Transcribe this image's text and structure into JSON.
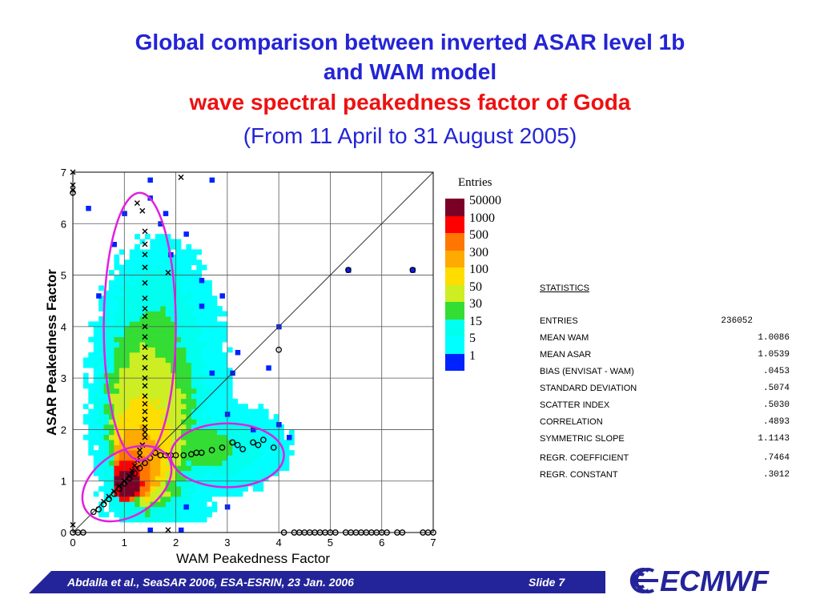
{
  "slide": {
    "title_line1": "Global comparison between inverted ASAR level 1b",
    "title_line2": "and WAM model",
    "title_line3": "wave spectral peakedness factor of Goda",
    "title_line4": "(From 11 April to 31 August 2005)",
    "footer_left": "Abdalla et al.,  SeaSAR 2006,  ESA-ESRIN,  23 Jan. 2006",
    "footer_right": "Slide 7",
    "logo_text": "ECMWF"
  },
  "legend": {
    "title": "Entries",
    "items": [
      {
        "label": "50000",
        "color": "#7a0026"
      },
      {
        "label": "1000",
        "color": "#ff0000"
      },
      {
        "label": "500",
        "color": "#ff7700"
      },
      {
        "label": "300",
        "color": "#ffaa00"
      },
      {
        "label": "100",
        "color": "#ffdd00"
      },
      {
        "label": "50",
        "color": "#ccee22"
      },
      {
        "label": "30",
        "color": "#33dd33"
      },
      {
        "label": "15",
        "color": "#00ffee"
      },
      {
        "label": "5",
        "color": "#00ffff"
      },
      {
        "label": "1",
        "color": "#0022ff"
      }
    ]
  },
  "statistics": {
    "heading": "STATISTICS",
    "rows": [
      {
        "label": "ENTRIES",
        "value": "236052"
      },
      {
        "label": "MEAN WAM",
        "value": "1.0086"
      },
      {
        "label": "MEAN ASAR",
        "value": "1.0539"
      },
      {
        "label": "BIAS (ENVISAT - WAM)",
        "value": ".0453"
      },
      {
        "label": "STANDARD DEVIATION",
        "value": ".5074"
      },
      {
        "label": "SCATTER INDEX",
        "value": ".5030"
      },
      {
        "label": "CORRELATION",
        "value": ".4893"
      },
      {
        "label": "SYMMETRIC SLOPE",
        "value": "1.1143"
      },
      {
        "label": "REGR. COEFFICIENT",
        "value": ".7464"
      },
      {
        "label": "REGR. CONSTANT",
        "value": ".3012"
      }
    ]
  },
  "chart_data": {
    "type": "heatmap",
    "xlabel": "WAM Peakedness Factor",
    "ylabel": "ASAR Peakedness Factor",
    "xlim": [
      0,
      7
    ],
    "ylim": [
      0,
      7
    ],
    "xticks": [
      "0",
      "1",
      "2",
      "3",
      "4",
      "5",
      "6",
      "7"
    ],
    "yticks": [
      "0",
      "1",
      "2",
      "3",
      "4",
      "5",
      "6",
      "7"
    ],
    "grid": true,
    "diagonal_line": true,
    "bin_size": 0.1,
    "density_regions": [
      {
        "level": 1,
        "cx": 1.6,
        "cy": 2.6,
        "rx": 1.4,
        "ry": 3.1
      },
      {
        "level": 1,
        "cx": 2.9,
        "cy": 1.6,
        "rx": 1.3,
        "ry": 0.9
      },
      {
        "level": 2,
        "cx": 1.5,
        "cy": 2.5,
        "rx": 1.05,
        "ry": 2.6
      },
      {
        "level": 2,
        "cx": 2.7,
        "cy": 1.6,
        "rx": 0.9,
        "ry": 0.55
      },
      {
        "level": 3,
        "cx": 1.45,
        "cy": 2.3,
        "rx": 0.85,
        "ry": 2.0
      },
      {
        "level": 3,
        "cx": 2.5,
        "cy": 1.6,
        "rx": 0.55,
        "ry": 0.35
      },
      {
        "level": 4,
        "cx": 1.4,
        "cy": 2.0,
        "rx": 0.7,
        "ry": 1.5
      },
      {
        "level": 5,
        "cx": 1.3,
        "cy": 1.6,
        "rx": 0.55,
        "ry": 1.0
      },
      {
        "level": 6,
        "cx": 1.2,
        "cy": 1.3,
        "rx": 0.45,
        "ry": 0.7
      },
      {
        "level": 7,
        "cx": 1.1,
        "cy": 1.05,
        "rx": 0.38,
        "ry": 0.5
      },
      {
        "level": 8,
        "cx": 1.0,
        "cy": 0.95,
        "rx": 0.3,
        "ry": 0.38
      },
      {
        "level": 9,
        "cx": 1.0,
        "cy": 0.9,
        "rx": 0.22,
        "ry": 0.28
      }
    ],
    "outlier_bins": [
      [
        1.5,
        6.85
      ],
      [
        2.7,
        6.85
      ],
      [
        1.5,
        6.5
      ],
      [
        0.3,
        6.3
      ],
      [
        1.0,
        6.2
      ],
      [
        1.8,
        6.2
      ],
      [
        1.7,
        6.0
      ],
      [
        2.2,
        5.8
      ],
      [
        0.8,
        5.6
      ],
      [
        1.9,
        5.4
      ],
      [
        0.5,
        4.6
      ],
      [
        2.5,
        4.9
      ],
      [
        2.5,
        4.4
      ],
      [
        2.9,
        4.6
      ],
      [
        3.2,
        3.5
      ],
      [
        3.8,
        3.2
      ],
      [
        4.0,
        4.0
      ],
      [
        2.7,
        3.1
      ],
      [
        3.1,
        3.1
      ],
      [
        3.0,
        2.3
      ],
      [
        3.5,
        2.0
      ],
      [
        4.0,
        2.1
      ],
      [
        4.2,
        1.85
      ],
      [
        3.0,
        0.5
      ],
      [
        2.2,
        0.5
      ],
      [
        1.5,
        0.05
      ],
      [
        2.1,
        0.05
      ],
      [
        5.35,
        5.1
      ],
      [
        6.6,
        5.1
      ]
    ],
    "series": [
      {
        "name": "",
        "marker": "x",
        "x": [
          0.0,
          0.0,
          0.0,
          0.0,
          1.25,
          1.35,
          1.4,
          1.4,
          1.4,
          1.4,
          1.4,
          1.4,
          1.4,
          1.4,
          1.4,
          1.4,
          1.4,
          1.4,
          1.4,
          1.4,
          1.4,
          1.4,
          1.4,
          1.4,
          1.4,
          1.4,
          1.4,
          1.4,
          1.35,
          1.3,
          1.3,
          1.25,
          1.2,
          1.15,
          1.1,
          1.0,
          0.9,
          0.8,
          0.7,
          0.6,
          2.1,
          1.85,
          1.85
        ],
        "y": [
          7.0,
          6.75,
          6.65,
          0.15,
          6.4,
          6.25,
          5.85,
          5.6,
          5.4,
          5.15,
          4.85,
          4.55,
          4.35,
          4.2,
          4.0,
          3.8,
          3.6,
          3.4,
          3.2,
          3.0,
          2.85,
          2.65,
          2.5,
          2.35,
          2.2,
          2.05,
          1.95,
          1.85,
          1.7,
          1.6,
          1.5,
          1.4,
          1.3,
          1.2,
          1.1,
          1.0,
          0.9,
          0.8,
          0.7,
          0.6,
          6.9,
          5.05,
          0.05
        ]
      },
      {
        "name": "",
        "marker": "o",
        "x": [
          0.0,
          0.1,
          0.2,
          0.4,
          0.5,
          0.6,
          0.7,
          0.8,
          0.9,
          1.0,
          1.1,
          1.2,
          1.3,
          1.4,
          1.5,
          1.6,
          1.7,
          1.8,
          1.9,
          2.0,
          2.15,
          2.3,
          2.4,
          2.5,
          2.7,
          2.9,
          3.1,
          3.2,
          3.3,
          3.5,
          3.6,
          3.7,
          3.9,
          4.0,
          0.0,
          4.1,
          4.3,
          4.4,
          4.5,
          4.6,
          4.7,
          4.8,
          4.9,
          5.0,
          5.1,
          5.3,
          5.4,
          5.5,
          5.6,
          5.7,
          5.8,
          5.9,
          6.0,
          6.1,
          6.3,
          6.4,
          6.8,
          6.9,
          7.0,
          6.6,
          5.35
        ],
        "y": [
          6.6,
          0.0,
          0.0,
          0.4,
          0.45,
          0.55,
          0.65,
          0.75,
          0.85,
          0.95,
          1.05,
          1.15,
          1.25,
          1.35,
          1.45,
          1.55,
          1.5,
          1.5,
          1.5,
          1.5,
          1.5,
          1.52,
          1.55,
          1.55,
          1.6,
          1.65,
          1.75,
          1.7,
          1.62,
          1.75,
          1.7,
          1.8,
          1.65,
          3.55,
          0.0,
          0.0,
          0.0,
          0.0,
          0.0,
          0.0,
          0.0,
          0.0,
          0.0,
          0.0,
          0.0,
          0.0,
          0.0,
          0.0,
          0.0,
          0.0,
          0.0,
          0.0,
          0.0,
          0.0,
          0.0,
          0.0,
          0.0,
          0.0,
          0.0,
          5.1,
          5.1
        ]
      }
    ],
    "annotations": [
      {
        "shape": "ellipse",
        "color": "#e020e0",
        "cx": 1.3,
        "cy": 4.0,
        "rx": 0.7,
        "ry": 2.6,
        "rotate_deg": 0
      },
      {
        "shape": "ellipse",
        "color": "#e020e0",
        "cx": 1.05,
        "cy": 0.95,
        "rx": 0.95,
        "ry": 0.62,
        "rotate_deg": -33
      },
      {
        "shape": "ellipse",
        "color": "#e020e0",
        "cx": 3.0,
        "cy": 1.5,
        "rx": 1.1,
        "ry": 0.62,
        "rotate_deg": 0
      }
    ]
  }
}
